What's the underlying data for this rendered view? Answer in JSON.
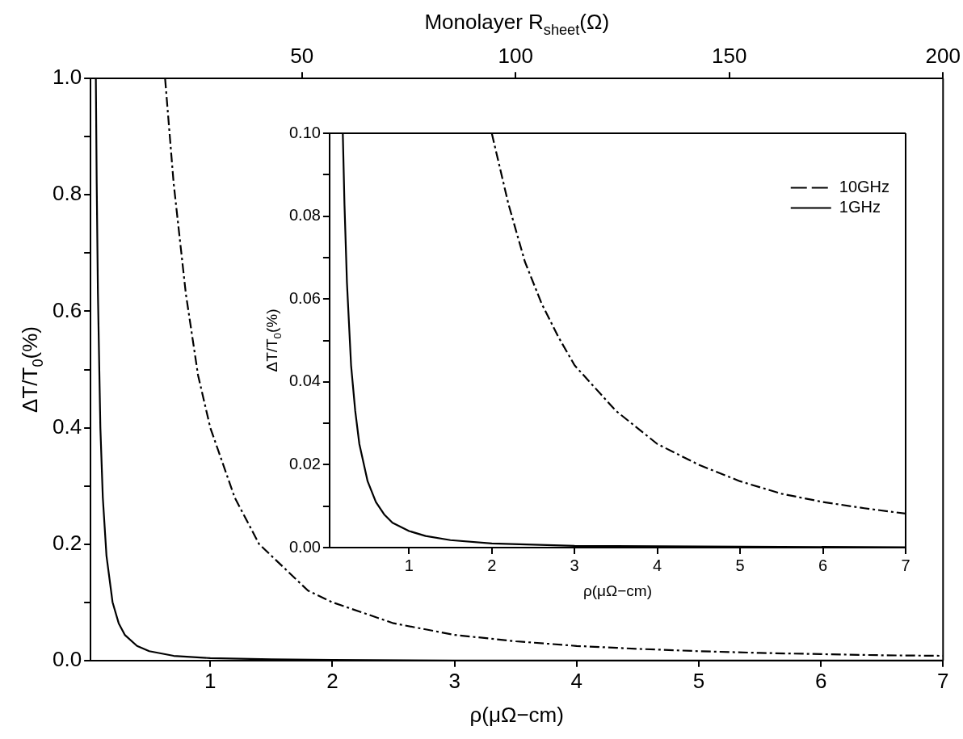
{
  "chart_data": [
    {
      "type": "line",
      "xlabel": "ρ(μΩ−cm)",
      "ylabel": "ΔT/T$_{0}$(%)",
      "x2label": "Monolayer R$_{sheet}$(Ω)",
      "xlim": [
        0.02,
        7
      ],
      "xticks": [
        1,
        2,
        3,
        4,
        5,
        6,
        7
      ],
      "x2lim": [
        0.57,
        200
      ],
      "x2ticks": [
        50,
        100,
        150,
        200
      ],
      "ylim": [
        0,
        1
      ],
      "yticks": [
        {
          "value": 0,
          "label": "0.0"
        },
        {
          "value": 0.1,
          "label": null
        },
        {
          "value": 0.2,
          "label": "0.2"
        },
        {
          "value": 0.3,
          "label": null
        },
        {
          "value": 0.4,
          "label": "0.4"
        },
        {
          "value": 0.5,
          "label": null
        },
        {
          "value": 0.6,
          "label": "0.6"
        },
        {
          "value": 0.7,
          "label": null
        },
        {
          "value": 0.8,
          "label": "0.8"
        },
        {
          "value": 0.9,
          "label": null
        },
        {
          "value": 1,
          "label": "1.0"
        }
      ],
      "series": [
        {
          "color": "#000000",
          "line_style": "dashed",
          "x": [
            0.63,
            0.7,
            0.8,
            0.9,
            1,
            1.2,
            1.4,
            1.6,
            1.8,
            2,
            2.5,
            3,
            3.5,
            4,
            4.5,
            5,
            5.5,
            6,
            6.5,
            7
          ],
          "values": [
            1.0,
            0.82,
            0.63,
            0.49,
            0.4,
            0.28,
            0.2,
            0.16,
            0.12,
            0.1,
            0.064,
            0.044,
            0.033,
            0.025,
            0.02,
            0.016,
            0.013,
            0.011,
            0.009,
            0.008
          ]
        },
        {
          "color": "#000000",
          "line_style": "solid",
          "x": [
            0.063,
            0.07,
            0.08,
            0.1,
            0.12,
            0.15,
            0.2,
            0.25,
            0.3,
            0.4,
            0.5,
            0.7,
            1,
            1.5,
            2,
            3,
            4,
            5,
            7
          ],
          "values": [
            1.0,
            0.82,
            0.63,
            0.4,
            0.28,
            0.18,
            0.1,
            0.064,
            0.044,
            0.025,
            0.016,
            0.008,
            0.004,
            0.002,
            0.001,
            0,
            0,
            0,
            0
          ]
        }
      ]
    },
    {
      "type": "line",
      "xlabel": "ρ(μΩ−cm)",
      "ylabel": "ΔT/T$_{0}$(%)",
      "legend": "top right",
      "xlim": [
        0.04,
        7
      ],
      "xticks": [
        1,
        2,
        3,
        4,
        5,
        6,
        7
      ],
      "ylim": [
        0,
        0.1
      ],
      "yticks": [
        {
          "value": 0,
          "label": "0.00"
        },
        {
          "value": 0.01,
          "label": null
        },
        {
          "value": 0.02,
          "label": "0.02"
        },
        {
          "value": 0.03,
          "label": null
        },
        {
          "value": 0.04,
          "label": "0.04"
        },
        {
          "value": 0.05,
          "label": null
        },
        {
          "value": 0.06,
          "label": "0.06"
        },
        {
          "value": 0.07,
          "label": null
        },
        {
          "value": 0.08,
          "label": "0.08"
        },
        {
          "value": 0.09,
          "label": null
        },
        {
          "value": 0.1,
          "label": "0.10"
        }
      ],
      "series": [
        {
          "name": "10GHz",
          "color": "#000000",
          "line_style": "dashed",
          "x": [
            2,
            2.2,
            2.4,
            2.6,
            2.8,
            3,
            3.5,
            4,
            4.5,
            5,
            5.5,
            6,
            6.5,
            7
          ],
          "values": [
            0.1,
            0.083,
            0.069,
            0.059,
            0.051,
            0.044,
            0.033,
            0.025,
            0.02,
            0.016,
            0.013,
            0.011,
            0.0095,
            0.0082
          ]
        },
        {
          "name": "1GHz",
          "color": "#000000",
          "line_style": "solid",
          "x": [
            0.2,
            0.22,
            0.25,
            0.3,
            0.35,
            0.4,
            0.5,
            0.6,
            0.7,
            0.8,
            1,
            1.2,
            1.5,
            2,
            3,
            4,
            5,
            7
          ],
          "values": [
            0.1,
            0.083,
            0.064,
            0.044,
            0.033,
            0.025,
            0.016,
            0.011,
            0.008,
            0.006,
            0.004,
            0.0028,
            0.0018,
            0.001,
            0.0004,
            0.0003,
            0.0002,
            0.0001
          ]
        }
      ]
    }
  ]
}
